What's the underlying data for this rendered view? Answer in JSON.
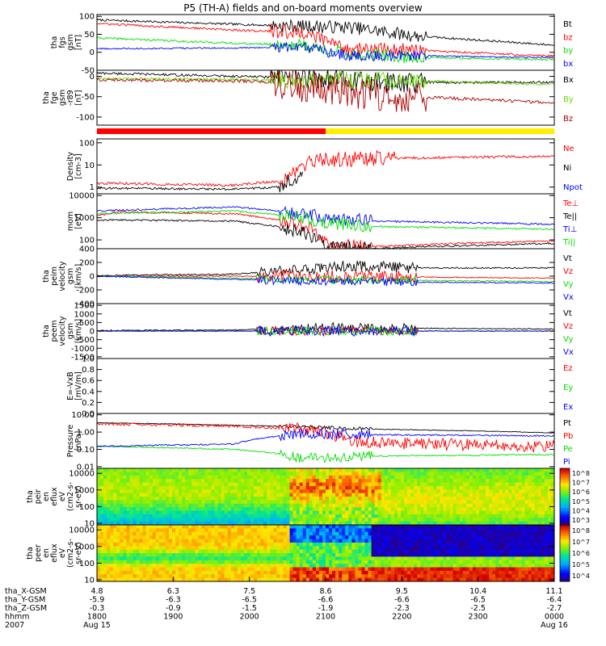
{
  "title": "P5 (TH-A) fields and on-board moments overview",
  "colors": {
    "black": "#000000",
    "red": "#ff0000",
    "green": "#00dd00",
    "blue": "#0000ff",
    "darkred": "#aa0000",
    "yellow": "#ffee00",
    "lightgreen": "#66dd00",
    "darkgreen": "#117700"
  },
  "quality_bar": {
    "segments": [
      {
        "from": 0.0,
        "to": 0.5,
        "color": "#ff0000"
      },
      {
        "from": 0.5,
        "to": 1.0,
        "color": "#ffee00"
      }
    ]
  },
  "chart_data": [
    {
      "id": "fgs",
      "type": "line",
      "ylabel_lines": [
        "tha",
        "fgs",
        "gsm",
        "[nT]"
      ],
      "ylim": [
        -50,
        105
      ],
      "ticks": [
        -50,
        0,
        50,
        100
      ],
      "tick_labels": [
        "-50",
        "0",
        "50",
        "100"
      ],
      "series": [
        {
          "name": "Bt",
          "color": "#000000",
          "kf": [
            [
              0,
              90
            ],
            [
              0.3,
              78
            ],
            [
              0.45,
              72
            ],
            [
              0.55,
              70
            ],
            [
              0.7,
              45
            ],
            [
              1,
              20
            ]
          ],
          "noise": 3,
          "burst": [
            0.38,
            0.72
          ],
          "bn": 18
        },
        {
          "name": "bz",
          "color": "#ff0000",
          "kf": [
            [
              0,
              80
            ],
            [
              0.3,
              62
            ],
            [
              0.45,
              55
            ],
            [
              0.55,
              10
            ],
            [
              0.7,
              5
            ],
            [
              1,
              -10
            ]
          ],
          "noise": 3,
          "burst": [
            0.38,
            0.72
          ],
          "bn": 20
        },
        {
          "name": "by",
          "color": "#00dd00",
          "kf": [
            [
              0,
              40
            ],
            [
              0.3,
              25
            ],
            [
              0.45,
              20
            ],
            [
              0.55,
              -5
            ],
            [
              0.7,
              -15
            ],
            [
              1,
              -20
            ]
          ],
          "noise": 3,
          "burst": [
            0.38,
            0.72
          ],
          "bn": 18
        },
        {
          "name": "bx",
          "color": "#0000ff",
          "kf": [
            [
              0,
              10
            ],
            [
              0.3,
              12
            ],
            [
              0.45,
              15
            ],
            [
              0.55,
              -10
            ],
            [
              0.7,
              -10
            ],
            [
              1,
              -15
            ]
          ],
          "noise": 2,
          "burst": [
            0.38,
            0.72
          ],
          "bn": 15
        }
      ]
    },
    {
      "id": "fge",
      "type": "line",
      "ylabel_lines": [
        "tha",
        "fge",
        "gsm",
        "-r89",
        "[nT]"
      ],
      "ylim": [
        -120,
        15
      ],
      "ticks": [
        -100,
        -50,
        0
      ],
      "tick_labels": [
        "-100",
        "-50",
        "0"
      ],
      "series": [
        {
          "name": "Bx",
          "color": "#000000",
          "kf": [
            [
              0,
              8
            ],
            [
              0.5,
              -5
            ],
            [
              0.6,
              -15
            ],
            [
              1,
              -15
            ]
          ],
          "noise": 3,
          "burst": [
            0.38,
            0.72
          ],
          "bn": 25
        },
        {
          "name": "By",
          "color": "#66dd00",
          "kf": [
            [
              0,
              -5
            ],
            [
              0.5,
              -10
            ],
            [
              0.6,
              -8
            ],
            [
              1,
              -20
            ]
          ],
          "noise": 3,
          "burst": [
            0.38,
            0.72
          ],
          "bn": 20
        },
        {
          "name": "Bz",
          "color": "#aa0000",
          "kf": [
            [
              0,
              -8
            ],
            [
              0.35,
              -12
            ],
            [
              0.5,
              -30
            ],
            [
              0.6,
              -45
            ],
            [
              0.8,
              -55
            ],
            [
              1,
              -65
            ]
          ],
          "noise": 4,
          "burst": [
            0.38,
            0.72
          ],
          "bn": 40
        }
      ]
    },
    {
      "id": "density",
      "type": "line",
      "log": true,
      "ylabel_lines": [
        "Density",
        "[cm-3]"
      ],
      "ylim": [
        0.5,
        150
      ],
      "ticks": [
        1,
        10,
        100
      ],
      "tick_labels": [
        "1",
        "10",
        "100"
      ],
      "series": [
        {
          "name": "Ne",
          "color": "#ff0000",
          "kf": [
            [
              0,
              1.5
            ],
            [
              0.3,
              1.2
            ],
            [
              0.42,
              2
            ],
            [
              0.48,
              15
            ],
            [
              0.6,
              20
            ],
            [
              0.65,
              20
            ],
            [
              1,
              25
            ]
          ],
          "noise": 0.06,
          "burst": [
            0.4,
            0.65
          ],
          "bn": 0.35
        },
        {
          "name": "Ni",
          "color": "#000000",
          "kf": [
            [
              0,
              0.9
            ],
            [
              0.3,
              0.8
            ],
            [
              0.4,
              1.0
            ],
            [
              0.44,
              3
            ],
            [
              0.45,
              3
            ],
            [
              0.46,
              null
            ]
          ],
          "noise": 0.05,
          "burst": [
            0.4,
            0.46
          ],
          "bn": 0.3
        },
        {
          "name": "Npot",
          "color": "#0000ff",
          "kf": [],
          "noise": 0
        }
      ]
    },
    {
      "id": "temperature",
      "type": "line",
      "log": true,
      "ylabel_lines": [
        "mom",
        "[eV]"
      ],
      "ylim": [
        40,
        12000
      ],
      "ticks": [
        100,
        1000,
        10000
      ],
      "tick_labels": [
        "100",
        "1000",
        "10000"
      ],
      "series": [
        {
          "name": "Te⊥",
          "color": "#ff0000",
          "kf": [
            [
              0,
              1200
            ],
            [
              0.05,
              1800
            ],
            [
              0.3,
              1500
            ],
            [
              0.42,
              600
            ],
            [
              0.5,
              60
            ],
            [
              0.6,
              50
            ],
            [
              1,
              90
            ]
          ],
          "noise": 0.04,
          "burst": [
            0.4,
            0.6
          ],
          "bn": 0.3
        },
        {
          "name": "Te||",
          "color": "#000000",
          "kf": [
            [
              0,
              800
            ],
            [
              0.3,
              700
            ],
            [
              0.42,
              300
            ],
            [
              0.5,
              50
            ],
            [
              0.6,
              40
            ],
            [
              1,
              70
            ]
          ],
          "noise": 0.04,
          "burst": [
            0.4,
            0.6
          ],
          "bn": 0.3
        },
        {
          "name": "Ti⊥",
          "color": "#0000ff",
          "kf": [
            [
              0,
              2000
            ],
            [
              0.3,
              3000
            ],
            [
              0.5,
              1000
            ],
            [
              0.6,
              700
            ],
            [
              1,
              500
            ]
          ],
          "noise": 0.04,
          "burst": [
            0.4,
            0.6
          ],
          "bn": 0.3
        },
        {
          "name": "Ti||",
          "color": "#00dd00",
          "kf": [
            [
              0,
              1500
            ],
            [
              0.3,
              2000
            ],
            [
              0.5,
              600
            ],
            [
              0.6,
              400
            ],
            [
              1,
              300
            ]
          ],
          "noise": 0.04,
          "burst": [
            0.4,
            0.6
          ],
          "bn": 0.3
        }
      ]
    },
    {
      "id": "peim",
      "type": "line",
      "ylabel_lines": [
        "tha",
        "peim",
        "velocity",
        "gsm",
        "[km/s]"
      ],
      "ylim": [
        -400,
        400
      ],
      "ticks": [
        -400,
        -200,
        0,
        200,
        400
      ],
      "tick_labels": [
        "-400",
        "-200",
        "0",
        "200",
        "400"
      ],
      "series": [
        {
          "name": "Vt",
          "color": "#000000",
          "kf": [
            [
              0,
              10
            ],
            [
              0.3,
              30
            ],
            [
              0.45,
              100
            ],
            [
              0.55,
              150
            ],
            [
              0.7,
              120
            ],
            [
              1,
              120
            ]
          ],
          "noise": 10,
          "burst": [
            0.35,
            0.7
          ],
          "bn": 80
        },
        {
          "name": "Vz",
          "color": "#ff0000",
          "kf": [
            [
              0,
              0
            ],
            [
              0.5,
              0
            ],
            [
              1,
              -30
            ]
          ],
          "noise": 8,
          "burst": [
            0.35,
            0.7
          ],
          "bn": 90
        },
        {
          "name": "Vy",
          "color": "#00dd00",
          "kf": [
            [
              0,
              0
            ],
            [
              0.5,
              -50
            ],
            [
              1,
              -80
            ]
          ],
          "noise": 8,
          "burst": [
            0.35,
            0.7
          ],
          "bn": 60
        },
        {
          "name": "Vx",
          "color": "#0000ff",
          "kf": [
            [
              0,
              0
            ],
            [
              0.5,
              -80
            ],
            [
              1,
              -100
            ]
          ],
          "noise": 8,
          "burst": [
            0.35,
            0.7
          ],
          "bn": 60
        }
      ]
    },
    {
      "id": "peem",
      "type": "line",
      "ylabel_lines": [
        "tha",
        "peem",
        "velocity",
        "gsm",
        "[km/s]"
      ],
      "ylim": [
        -1600,
        1600
      ],
      "ticks": [
        -1500,
        -1000,
        -500,
        0,
        500,
        1000,
        1500
      ],
      "tick_labels": [
        "-1500",
        "-1000",
        "-500",
        "0",
        "500",
        "1000",
        "1500"
      ],
      "series": [
        {
          "name": "Vt",
          "color": "#000000",
          "kf": [
            [
              0,
              40
            ],
            [
              0.3,
              60
            ],
            [
              0.5,
              200
            ],
            [
              1,
              120
            ]
          ],
          "noise": 30,
          "burst": [
            0.35,
            0.7
          ],
          "bn": 300
        },
        {
          "name": "Vz",
          "color": "#ff0000",
          "kf": [
            [
              0,
              0
            ],
            [
              1,
              0
            ]
          ],
          "noise": 20,
          "burst": [
            0.35,
            0.7
          ],
          "bn": 250
        },
        {
          "name": "Vy",
          "color": "#00dd00",
          "kf": [
            [
              0,
              0
            ],
            [
              1,
              0
            ]
          ],
          "noise": 20,
          "burst": [
            0.35,
            0.7
          ],
          "bn": 250
        },
        {
          "name": "Vx",
          "color": "#0000ff",
          "kf": [
            [
              0,
              0
            ],
            [
              1,
              0
            ]
          ],
          "noise": 20,
          "burst": [
            0.35,
            0.7
          ],
          "bn": 300
        }
      ]
    },
    {
      "id": "efield",
      "type": "line",
      "ylabel_lines": [
        "E=-VxB",
        "[mV/m]"
      ],
      "ylim": [
        0,
        1
      ],
      "ticks": [
        0,
        0.2,
        0.4,
        0.6,
        0.8,
        1
      ],
      "tick_labels": [
        "0.0",
        "0.2",
        "0.4",
        "0.6",
        "0.8",
        "1.0"
      ],
      "series": [
        {
          "name": "Ez",
          "color": "#ff0000",
          "kf": [],
          "noise": 0
        },
        {
          "name": "Ey",
          "color": "#00dd00",
          "kf": [],
          "noise": 0
        },
        {
          "name": "Ex",
          "color": "#0000ff",
          "kf": [],
          "noise": 0
        }
      ]
    },
    {
      "id": "pressure",
      "type": "line",
      "log": true,
      "ylabel_lines": [
        "Pressure",
        "[nPa]"
      ],
      "ylim": [
        0.008,
        12
      ],
      "ticks": [
        0.01,
        0.1,
        1,
        10
      ],
      "tick_labels": [
        "0.01",
        "0.10",
        "1.00",
        "10.00"
      ],
      "series": [
        {
          "name": "Pt",
          "color": "#000000",
          "kf": [
            [
              0,
              3.5
            ],
            [
              0.3,
              2.5
            ],
            [
              0.45,
              2
            ],
            [
              0.6,
              1.5
            ],
            [
              1,
              0.9
            ]
          ],
          "noise": 0.02,
          "burst": [
            0.4,
            0.6
          ],
          "bn": 0.1
        },
        {
          "name": "Pb",
          "color": "#ff0000",
          "kf": [
            [
              0,
              3
            ],
            [
              0.3,
              2.2
            ],
            [
              0.45,
              1.5
            ],
            [
              0.55,
              0.3
            ],
            [
              0.7,
              0.2
            ],
            [
              1,
              0.15
            ]
          ],
          "noise": 0.08,
          "burst": [
            0.4,
            1.0
          ],
          "bn": 0.35
        },
        {
          "name": "Pe",
          "color": "#00dd00",
          "kf": [
            [
              0,
              0.15
            ],
            [
              0.3,
              0.1
            ],
            [
              0.45,
              0.03
            ],
            [
              0.55,
              0.04
            ],
            [
              1,
              0.05
            ]
          ],
          "noise": 0.04,
          "burst": [
            0.4,
            0.6
          ],
          "bn": 0.3
        },
        {
          "name": "Pi",
          "color": "#0000ff",
          "kf": [
            [
              0,
              0.15
            ],
            [
              0.3,
              0.2
            ],
            [
              0.45,
              0.8
            ],
            [
              0.6,
              0.7
            ],
            [
              1,
              0.6
            ]
          ],
          "noise": 0.04,
          "burst": [
            0.4,
            0.6
          ],
          "bn": 0.3
        }
      ]
    },
    {
      "id": "peir",
      "type": "heatmap",
      "log": true,
      "ylabel_lines": [
        "tha",
        "peir",
        "en",
        "eflux",
        "eV",
        "(cm2-s-",
        "sr-eV)"
      ],
      "ylim": [
        8,
        20000
      ],
      "ticks": [
        10,
        100,
        1000,
        10000
      ],
      "tick_labels": [
        "10",
        "100",
        "1000",
        "10000"
      ],
      "colorbar": {
        "ticks": [
          "10^3",
          "10^4",
          "10^5",
          "10^6",
          "10^7",
          "10^8"
        ]
      }
    },
    {
      "id": "peer",
      "type": "heatmap",
      "log": true,
      "ylabel_lines": [
        "tha",
        "peer",
        "en",
        "eflux",
        "eV",
        "(cm2-s-",
        "sr-eV)"
      ],
      "ylim": [
        8,
        20000
      ],
      "ticks": [
        10,
        100,
        1000,
        10000
      ],
      "tick_labels": [
        "10",
        "100",
        "1000",
        "10000"
      ],
      "colorbar": {
        "ticks": [
          "10^4",
          "10^5",
          "10^6",
          "10^7",
          "10^8"
        ]
      }
    }
  ],
  "x_axis": {
    "row_labels": [
      "tha_X-GSM",
      "tha_Y-GSM",
      "tha_Z-GSM",
      "hhmm",
      "2007"
    ],
    "ticks": [
      {
        "frac": 0.0,
        "x": "4.8",
        "y": "-5.9",
        "z": "-0.3",
        "time": "1800",
        "date": "Aug 15"
      },
      {
        "frac": 0.1667,
        "x": "6.3",
        "y": "-6.3",
        "z": "-0.9",
        "time": "1900",
        "date": ""
      },
      {
        "frac": 0.3333,
        "x": "7.5",
        "y": "-6.5",
        "z": "-1.5",
        "time": "2000",
        "date": ""
      },
      {
        "frac": 0.5,
        "x": "8.6",
        "y": "-6.6",
        "z": "-1.9",
        "time": "2100",
        "date": ""
      },
      {
        "frac": 0.6667,
        "x": "9.5",
        "y": "-6.6",
        "z": "-2.3",
        "time": "2200",
        "date": ""
      },
      {
        "frac": 0.8333,
        "x": "10.4",
        "y": "-6.5",
        "z": "-2.5",
        "time": "2300",
        "date": ""
      },
      {
        "frac": 1.0,
        "x": "11.1",
        "y": "-6.4",
        "z": "-2.7",
        "time": "0000",
        "date": "Aug 16"
      }
    ]
  }
}
